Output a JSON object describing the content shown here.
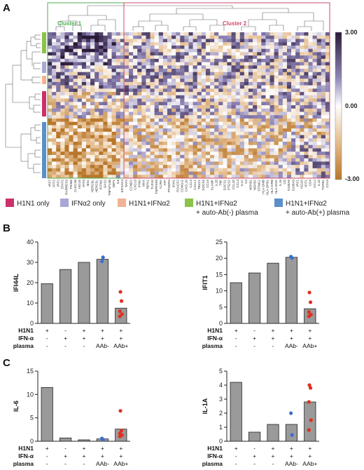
{
  "panel_letters": [
    "A",
    "B",
    "C"
  ],
  "heatmap": {
    "clusters": [
      {
        "label": "Cluster 1",
        "color": "#4caf50"
      },
      {
        "label": "Cluster 2",
        "color": "#d14a6a"
      }
    ],
    "colorbar": {
      "max_label": "3.00",
      "mid_label": "0.00",
      "min_label": "-3.00",
      "colors": [
        "#2a1a38",
        "#8c82b4",
        "#ffffff",
        "#e8c49a",
        "#b8762a"
      ]
    },
    "genes": [
      "IRF7",
      "IFIT2",
      "IRF2",
      "STAT2",
      "RARRES3",
      "TRIM5",
      "CLEC2B",
      "ISG15",
      "IFIT3",
      "MX1",
      "HERC6L",
      "HERC5L",
      "IFITM1",
      "OAS2",
      "TNFSF13B",
      "ZBP1",
      "IL6",
      "EIF2AK4",
      "TAP2",
      "CCND2",
      "CXCL8",
      "IFNG",
      "MAX",
      "RIPK1",
      "TLR10",
      "TNFRSF8",
      "IL2RA",
      "ATF",
      "PTGER4",
      "IFIH1",
      "POU2F2",
      "CD40LG",
      "CXCL10",
      "CCL4",
      "CXCL2",
      "TBX21",
      "SOCS3",
      "CCL5",
      "SLAMF",
      "IL1B",
      "TNF",
      "SOCS1",
      "PTGS2",
      "CCL20",
      "CCL3",
      "IL1A",
      "C3",
      "NFKB1",
      "NFKB2",
      "STING1",
      "HLA-DMB",
      "HLA-DPB1",
      "HLA-DRB",
      "HLA-DOA",
      "IL18",
      "CD",
      "S100A8",
      "S100A9",
      "IRF1",
      "ISG20",
      "IFIT1",
      "CD4",
      "CCL2",
      "IL10",
      "TGFB1",
      "CD14"
    ],
    "legend": [
      {
        "label": "H1N1 only",
        "color": "#cc2f6b"
      },
      {
        "label": "IFNα2 only",
        "color": "#a9a7d6"
      },
      {
        "label": "H1N1+IFNα2",
        "color": "#f1b394"
      },
      {
        "label": "H1N1+IFNα2",
        "label2": "+ auto-Ab(-) plasma",
        "color": "#8bc34a"
      },
      {
        "label": "H1N1+IFNα2",
        "label2": "+ auto-Ab(+) plasma",
        "color": "#5b8fc9"
      }
    ]
  },
  "conditions": {
    "row_labels": [
      "H1N1",
      "IFN-α",
      "plasma"
    ],
    "rows": [
      [
        "+",
        "-",
        "+",
        "+",
        "+"
      ],
      [
        "-",
        "+",
        "+",
        "+",
        "+"
      ],
      [
        "-",
        "-",
        "-",
        "AAb-",
        "AAb+"
      ]
    ]
  },
  "chart_data": [
    {
      "type": "bar",
      "panel": "B",
      "ylabel": "IFI44L",
      "ylim": [
        0,
        40
      ],
      "yticks": [
        0,
        10,
        20,
        30,
        40
      ],
      "values": [
        19.5,
        26.5,
        30,
        31.5,
        7.5
      ],
      "points": [
        [],
        [],
        [],
        [
          {
            "y": 30.5,
            "color": "#3a6fd0"
          },
          {
            "y": 32.5,
            "color": "#3a6fd0"
          }
        ],
        [
          {
            "y": 15.5,
            "color": "#e03020"
          },
          {
            "y": 11,
            "color": "#e03020"
          },
          {
            "y": 6,
            "color": "#e03020"
          },
          {
            "y": 4.5,
            "color": "#e03020"
          },
          {
            "y": 3.5,
            "color": "#e03020"
          }
        ]
      ]
    },
    {
      "type": "bar",
      "panel": "B",
      "ylabel": "IFIT1",
      "ylim": [
        0,
        25
      ],
      "yticks": [
        0,
        5,
        10,
        15,
        20,
        25
      ],
      "values": [
        12.5,
        15.5,
        18.5,
        20.3,
        4.5
      ],
      "points": [
        [],
        [],
        [],
        [
          {
            "y": 20.5,
            "color": "#3a6fd0"
          },
          {
            "y": 20.1,
            "color": "#3a6fd0"
          }
        ],
        [
          {
            "y": 9.5,
            "color": "#e03020"
          },
          {
            "y": 6.5,
            "color": "#e03020"
          },
          {
            "y": 3.5,
            "color": "#e03020"
          },
          {
            "y": 2.7,
            "color": "#e03020"
          },
          {
            "y": 2.2,
            "color": "#e03020"
          }
        ]
      ]
    },
    {
      "type": "bar",
      "panel": "C",
      "ylabel": "IL-6",
      "ylim": [
        0,
        15
      ],
      "yticks": [
        0,
        5,
        10,
        15
      ],
      "values": [
        11.5,
        0.7,
        0.3,
        0.5,
        2.6
      ],
      "points": [
        [],
        [],
        [],
        [
          {
            "y": 0.6,
            "color": "#3a6fd0"
          },
          {
            "y": 0.35,
            "color": "#3a6fd0"
          }
        ],
        [
          {
            "y": 6.5,
            "color": "#e03020"
          },
          {
            "y": 2.3,
            "color": "#e03020"
          },
          {
            "y": 1.7,
            "color": "#e03020"
          },
          {
            "y": 1.3,
            "color": "#e03020"
          },
          {
            "y": 1.0,
            "color": "#e03020"
          }
        ]
      ]
    },
    {
      "type": "bar",
      "panel": "C",
      "ylabel": "IL-1A",
      "ylim": [
        0,
        5
      ],
      "yticks": [
        0,
        1,
        2,
        3,
        4,
        5
      ],
      "values": [
        4.2,
        0.65,
        1.2,
        1.2,
        2.8
      ],
      "points": [
        [],
        [],
        [],
        [
          {
            "y": 2.0,
            "color": "#3a6fd0"
          },
          {
            "y": 0.45,
            "color": "#3a6fd0"
          }
        ],
        [
          {
            "y": 4.0,
            "color": "#e03020"
          },
          {
            "y": 3.8,
            "color": "#e03020"
          },
          {
            "y": 2.8,
            "color": "#e03020"
          },
          {
            "y": 1.5,
            "color": "#e03020"
          },
          {
            "y": 0.8,
            "color": "#e03020"
          }
        ]
      ]
    }
  ]
}
